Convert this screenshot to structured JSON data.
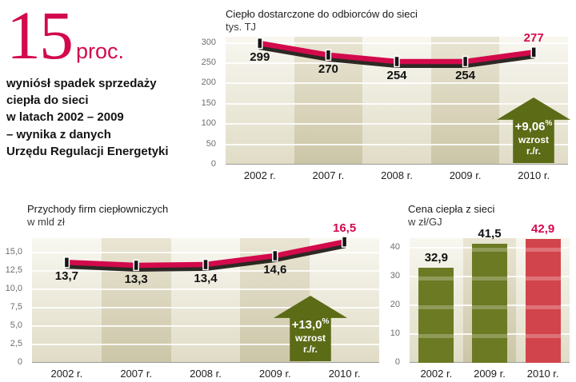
{
  "headline": {
    "number": "15",
    "unit": "proc.",
    "lines": [
      "wyniósł spadek sprzedaży",
      "ciepła do sieci",
      "w latach 2002 – 2009",
      "– wynika z danych",
      "Urzędu Regulacji Energetyki"
    ]
  },
  "colors": {
    "accent": "#d20a4c",
    "marker": "#141414",
    "badge_green": "#5c6b16",
    "bar_olive": "#6b7a23",
    "bar_red": "#d2444b"
  },
  "chart_data": [
    {
      "type": "line",
      "title": "Ciepło dostarczone do odbiorców do sieci",
      "subtitle": "tys. TJ",
      "categories": [
        "2002 r.",
        "2007 r.",
        "2008 r.",
        "2009 r.",
        "2010 r."
      ],
      "values": [
        299,
        270,
        254,
        254,
        277
      ],
      "value_labels": [
        "299",
        "270",
        "254",
        "254",
        "277"
      ],
      "ylim": [
        0,
        300
      ],
      "yscale_max": 315,
      "grid": true,
      "yticks": [
        {
          "v": 0,
          "label": "0"
        },
        {
          "v": 50,
          "label": "50"
        },
        {
          "v": 100,
          "label": "100"
        },
        {
          "v": 150,
          "label": "150"
        },
        {
          "v": 200,
          "label": "200"
        },
        {
          "v": 250,
          "label": "250"
        },
        {
          "v": 300,
          "label": "300"
        }
      ],
      "badge": {
        "value": "+9,06",
        "suffix": "%",
        "lines": [
          "wzrost",
          "r./r."
        ]
      }
    },
    {
      "type": "line",
      "title": "Przychody firm ciepłowniczych",
      "subtitle": "w mld zł",
      "categories": [
        "2002 r.",
        "2007 r.",
        "2008 r.",
        "2009 r.",
        "2010 r."
      ],
      "values": [
        13.7,
        13.3,
        13.4,
        14.6,
        16.5
      ],
      "value_labels": [
        "13,7",
        "13,3",
        "13,4",
        "14,6",
        "16,5"
      ],
      "ylim": [
        0,
        15
      ],
      "yscale_max": 17,
      "grid": true,
      "yticks": [
        {
          "v": 0,
          "label": "0"
        },
        {
          "v": 2.5,
          "label": "2,5"
        },
        {
          "v": 5,
          "label": "5,0"
        },
        {
          "v": 7.5,
          "label": "7,5"
        },
        {
          "v": 10,
          "label": "10,0"
        },
        {
          "v": 12.5,
          "label": "12,5"
        },
        {
          "v": 15,
          "label": "15,0"
        }
      ],
      "badge": {
        "value": "+13,0",
        "suffix": "%",
        "lines": [
          "wzrost",
          "r./r."
        ]
      }
    },
    {
      "type": "bar",
      "title": "Cena ciepła z sieci",
      "subtitle": "w zł/GJ",
      "categories": [
        "2002 r.",
        "2009 r.",
        "2010 r."
      ],
      "values": [
        32.9,
        41.5,
        42.9
      ],
      "value_labels": [
        "32,9",
        "41,5",
        "42,9"
      ],
      "bar_colors": [
        "olive",
        "olive",
        "red"
      ],
      "ylim": [
        0,
        40
      ],
      "yscale_max": 43.3,
      "grid": true,
      "yticks": [
        {
          "v": 0,
          "label": "0"
        },
        {
          "v": 10,
          "label": "10"
        },
        {
          "v": 20,
          "label": "20"
        },
        {
          "v": 30,
          "label": "30"
        },
        {
          "v": 40,
          "label": "40"
        }
      ]
    }
  ]
}
